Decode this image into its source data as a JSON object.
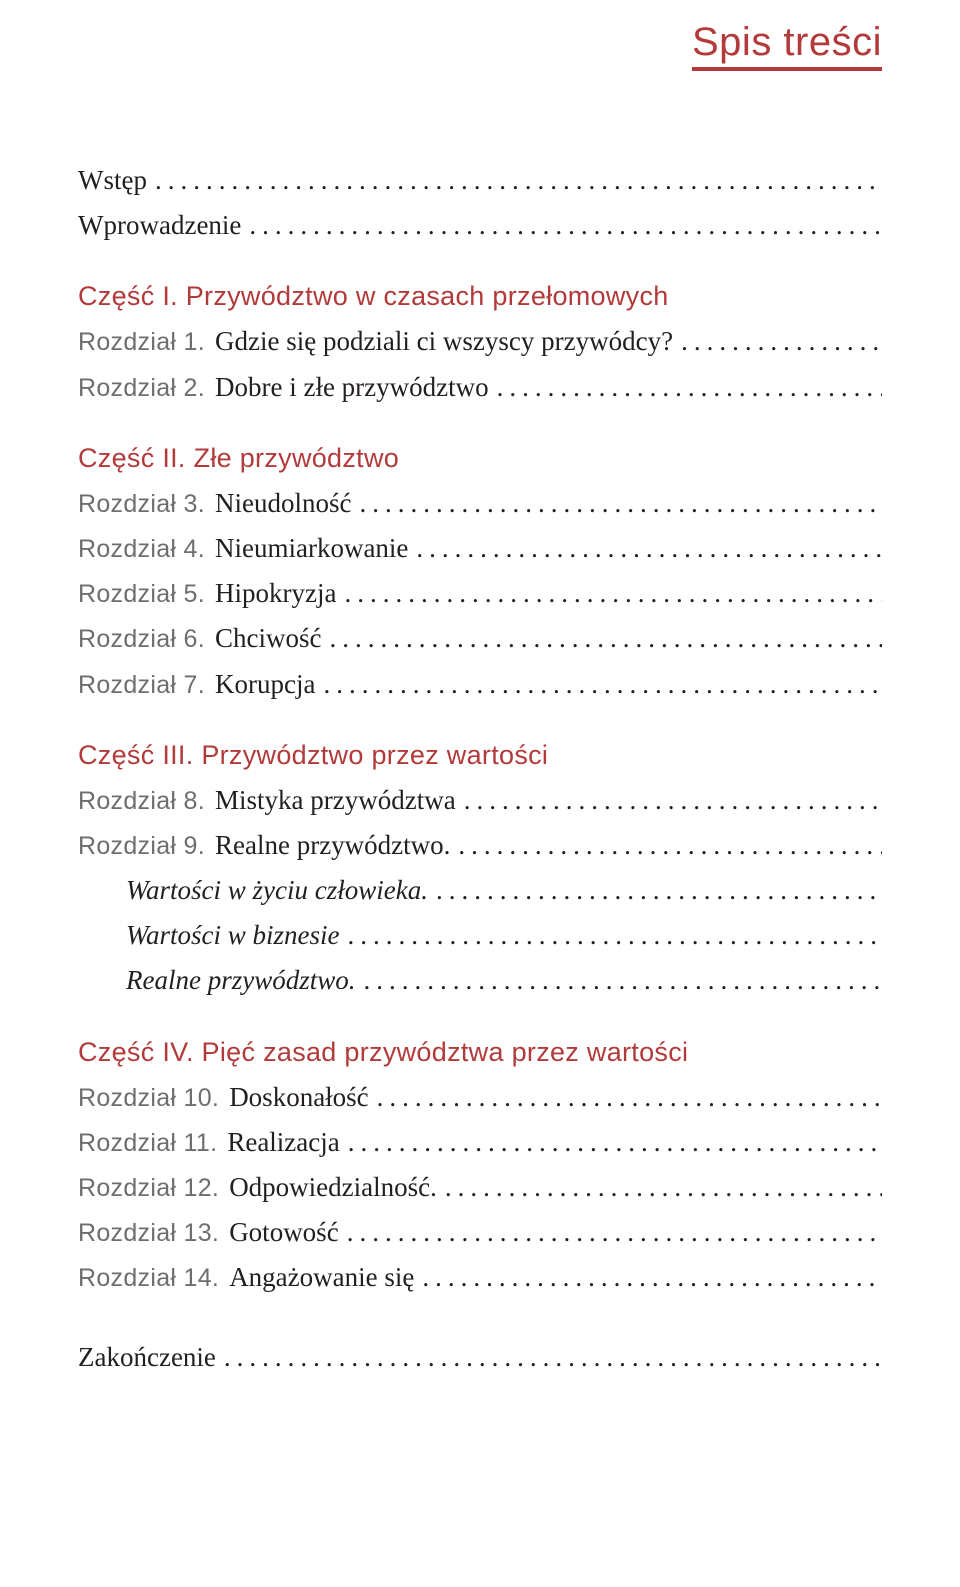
{
  "title": "Spis treści",
  "colors": {
    "accent": "#b23a3a",
    "body": "#231f20",
    "muted": "#6d6e71",
    "background": "#ffffff"
  },
  "intro": [
    {
      "label": "Wstęp"
    },
    {
      "label": "Wprowadzenie"
    }
  ],
  "parts": [
    {
      "heading": "Część I. Przywództwo w czasach przełomowych",
      "entries": [
        {
          "prefix": "Rozdział 1.",
          "label": "Gdzie się podziali ci wszyscy przywódcy?"
        },
        {
          "prefix": "Rozdział 2.",
          "label": "Dobre i złe przywództwo"
        }
      ]
    },
    {
      "heading": "Część II. Złe przywództwo",
      "entries": [
        {
          "prefix": "Rozdział 3.",
          "label": "Nieudolność"
        },
        {
          "prefix": "Rozdział 4.",
          "label": "Nieumiarkowanie"
        },
        {
          "prefix": "Rozdział 5.",
          "label": "Hipokryzja"
        },
        {
          "prefix": "Rozdział 6.",
          "label": "Chciwość"
        },
        {
          "prefix": "Rozdział 7.",
          "label": "Korupcja"
        }
      ]
    },
    {
      "heading": "Część III. Przywództwo przez wartości",
      "entries": [
        {
          "prefix": "Rozdział 8.",
          "label": "Mistyka przywództwa"
        },
        {
          "prefix": "Rozdział 9.",
          "label": "Realne przywództwo."
        },
        {
          "prefix": "",
          "label": "Wartości w życiu człowieka.",
          "italic": true,
          "indent": true
        },
        {
          "prefix": "",
          "label": "Wartości w biznesie",
          "italic": true,
          "indent": true
        },
        {
          "prefix": "",
          "label": "Realne przywództwo.",
          "italic": true,
          "indent": true
        }
      ]
    },
    {
      "heading": "Część IV. Pięć zasad przywództwa przez wartości",
      "entries": [
        {
          "prefix": "Rozdział 10.",
          "label": "Doskonałość"
        },
        {
          "prefix": "Rozdział 11.",
          "label": "Realizacja"
        },
        {
          "prefix": "Rozdział 12.",
          "label": "Odpowiedzialność."
        },
        {
          "prefix": "Rozdział 13.",
          "label": "Gotowość"
        },
        {
          "prefix": "Rozdział 14.",
          "label": "Angażowanie się"
        }
      ]
    }
  ],
  "closing": [
    {
      "label": "Zakończenie"
    }
  ],
  "dots_filler": "................................................................................................"
}
